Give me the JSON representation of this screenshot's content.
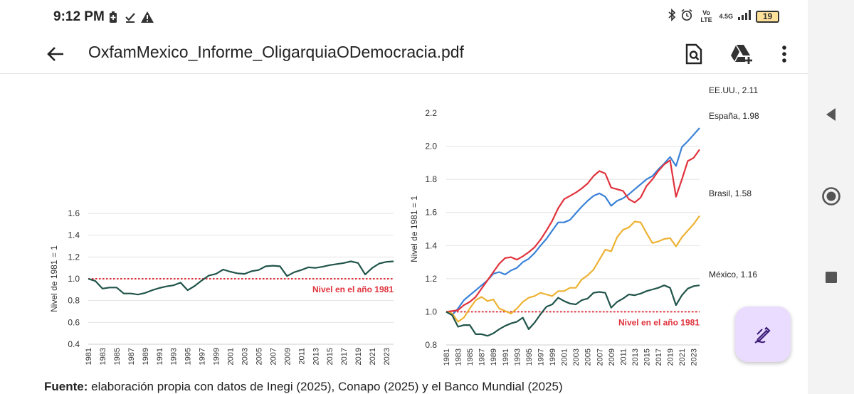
{
  "status_bar": {
    "time": "9:12 PM",
    "left_icons": [
      "battery-saver-icon",
      "download-done-icon",
      "warning-icon"
    ],
    "network_label": "Vo LTE",
    "network_speed": "4.5G",
    "battery_level": "19"
  },
  "app_bar": {
    "title": "OxfamMexico_Informe_OligarquiaODemocracia.pdf",
    "actions": [
      "search-document-icon",
      "drive-add-icon",
      "more-vert-icon"
    ]
  },
  "source": {
    "bold": "Fuente:",
    "text": " elaboración propia con datos de Inegi (2025), Conapo (2025) y el Banco Mundial (2025)"
  },
  "chart_data": [
    {
      "type": "line",
      "ylabel": "Nivel de 1981 = 1",
      "ylim": [
        0.4,
        1.6
      ],
      "yticks": [
        "1.6",
        "1.4",
        "1.2",
        "1.0",
        "0.8",
        "0.6",
        "0.4"
      ],
      "xticks": [
        "1981",
        "1983",
        "1985",
        "1987",
        "1989",
        "1991",
        "1993",
        "1995",
        "1997",
        "1999",
        "2001",
        "2003",
        "2005",
        "2007",
        "2009",
        "2011",
        "2013",
        "2015",
        "2017",
        "2019",
        "2021",
        "2023"
      ],
      "reference": {
        "value": 1.0,
        "label": "Nivel en el año 1981",
        "color": "#e0333c"
      },
      "grid": true,
      "series": [
        {
          "color": "#20544a",
          "x": [
            1981,
            1982,
            1983,
            1984,
            1985,
            1986,
            1987,
            1988,
            1989,
            1990,
            1991,
            1992,
            1993,
            1994,
            1995,
            1996,
            1997,
            1998,
            1999,
            2000,
            2001,
            2002,
            2003,
            2004,
            2005,
            2006,
            2007,
            2008,
            2009,
            2010,
            2011,
            2012,
            2013,
            2014,
            2015,
            2016,
            2017,
            2018,
            2019,
            2020,
            2021,
            2022,
            2023,
            2024
          ],
          "values": [
            1.0,
            0.98,
            0.91,
            0.92,
            0.92,
            0.865,
            0.865,
            0.855,
            0.87,
            0.895,
            0.915,
            0.93,
            0.94,
            0.965,
            0.895,
            0.935,
            0.985,
            1.03,
            1.045,
            1.085,
            1.065,
            1.05,
            1.045,
            1.07,
            1.08,
            1.115,
            1.12,
            1.115,
            1.025,
            1.06,
            1.08,
            1.105,
            1.1,
            1.11,
            1.125,
            1.135,
            1.145,
            1.16,
            1.145,
            1.04,
            1.1,
            1.14,
            1.155,
            1.16
          ]
        }
      ]
    },
    {
      "type": "line",
      "ylabel": "Nivel de 1981 = 1",
      "ylim": [
        0.8,
        2.2
      ],
      "yticks": [
        "2.0",
        "1.8",
        "1.6",
        "1.4",
        "1.2",
        "1.0",
        "0.8"
      ],
      "partial_top_tick": "2.2",
      "xticks": [
        "1981",
        "1983",
        "1985",
        "1987",
        "1989",
        "1991",
        "1993",
        "1995",
        "1997",
        "1999",
        "2001",
        "2003",
        "2005",
        "2007",
        "2009",
        "2011",
        "2013",
        "2015",
        "2017",
        "2019",
        "2021",
        "2023"
      ],
      "reference": {
        "value": 1.0,
        "label": "Nivel en el año 1981",
        "color": "#e0333c"
      },
      "grid": true,
      "series": [
        {
          "name": "EE.UU., 2.11",
          "color": "#3a82d8",
          "x": [
            1981,
            1982,
            1983,
            1984,
            1985,
            1986,
            1987,
            1988,
            1989,
            1990,
            1991,
            1992,
            1993,
            1994,
            1995,
            1996,
            1997,
            1998,
            1999,
            2000,
            2001,
            2002,
            2003,
            2004,
            2005,
            2006,
            2007,
            2008,
            2009,
            2010,
            2011,
            2012,
            2013,
            2014,
            2015,
            2016,
            2017,
            2018,
            2019,
            2020,
            2021,
            2022,
            2023,
            2024
          ],
          "values": [
            1.0,
            0.98,
            1.02,
            1.07,
            1.1,
            1.13,
            1.16,
            1.19,
            1.23,
            1.24,
            1.225,
            1.25,
            1.265,
            1.3,
            1.32,
            1.355,
            1.4,
            1.44,
            1.49,
            1.54,
            1.54,
            1.555,
            1.595,
            1.635,
            1.67,
            1.7,
            1.715,
            1.695,
            1.64,
            1.67,
            1.685,
            1.71,
            1.74,
            1.77,
            1.8,
            1.82,
            1.86,
            1.895,
            1.935,
            1.88,
            1.995,
            2.03,
            2.07,
            2.11
          ]
        },
        {
          "name": "España, 1.98",
          "color": "#e0333c",
          "x": [
            1981,
            1982,
            1983,
            1984,
            1985,
            1986,
            1987,
            1988,
            1989,
            1990,
            1991,
            1992,
            1993,
            1994,
            1995,
            1996,
            1997,
            1998,
            1999,
            2000,
            2001,
            2002,
            2003,
            2004,
            2005,
            2006,
            2007,
            2008,
            2009,
            2010,
            2011,
            2012,
            2013,
            2014,
            2015,
            2016,
            2017,
            2018,
            2019,
            2020,
            2021,
            2022,
            2023,
            2024
          ],
          "values": [
            1.0,
            1.005,
            1.01,
            1.04,
            1.06,
            1.09,
            1.14,
            1.19,
            1.24,
            1.29,
            1.325,
            1.33,
            1.315,
            1.335,
            1.36,
            1.39,
            1.435,
            1.49,
            1.55,
            1.625,
            1.68,
            1.7,
            1.72,
            1.745,
            1.775,
            1.82,
            1.85,
            1.835,
            1.75,
            1.74,
            1.73,
            1.68,
            1.66,
            1.69,
            1.76,
            1.8,
            1.85,
            1.89,
            1.915,
            1.695,
            1.8,
            1.91,
            1.93,
            1.98
          ]
        },
        {
          "name": "Brasil, 1.58",
          "color": "#edb233",
          "x": [
            1981,
            1982,
            1983,
            1984,
            1985,
            1986,
            1987,
            1988,
            1989,
            1990,
            1991,
            1992,
            1993,
            1994,
            1995,
            1996,
            1997,
            1998,
            1999,
            2000,
            2001,
            2002,
            2003,
            2004,
            2005,
            2006,
            2007,
            2008,
            2009,
            2010,
            2011,
            2012,
            2013,
            2014,
            2015,
            2016,
            2017,
            2018,
            2019,
            2020,
            2021,
            2022,
            2023,
            2024
          ],
          "values": [
            1.0,
            0.99,
            0.94,
            0.965,
            1.02,
            1.07,
            1.09,
            1.065,
            1.075,
            1.02,
            1.005,
            0.99,
            1.02,
            1.06,
            1.085,
            1.095,
            1.115,
            1.105,
            1.095,
            1.125,
            1.125,
            1.145,
            1.145,
            1.195,
            1.22,
            1.255,
            1.315,
            1.375,
            1.365,
            1.45,
            1.495,
            1.51,
            1.545,
            1.54,
            1.475,
            1.415,
            1.425,
            1.44,
            1.445,
            1.395,
            1.45,
            1.49,
            1.53,
            1.58
          ]
        },
        {
          "name": "México, 1.16",
          "color": "#20544a",
          "x": [
            1981,
            1982,
            1983,
            1984,
            1985,
            1986,
            1987,
            1988,
            1989,
            1990,
            1991,
            1992,
            1993,
            1994,
            1995,
            1996,
            1997,
            1998,
            1999,
            2000,
            2001,
            2002,
            2003,
            2004,
            2005,
            2006,
            2007,
            2008,
            2009,
            2010,
            2011,
            2012,
            2013,
            2014,
            2015,
            2016,
            2017,
            2018,
            2019,
            2020,
            2021,
            2022,
            2023,
            2024
          ],
          "values": [
            1.0,
            0.98,
            0.91,
            0.92,
            0.92,
            0.865,
            0.865,
            0.855,
            0.87,
            0.895,
            0.915,
            0.93,
            0.94,
            0.965,
            0.895,
            0.935,
            0.985,
            1.03,
            1.045,
            1.085,
            1.065,
            1.05,
            1.045,
            1.07,
            1.08,
            1.115,
            1.12,
            1.115,
            1.025,
            1.06,
            1.08,
            1.105,
            1.1,
            1.11,
            1.125,
            1.135,
            1.145,
            1.16,
            1.145,
            1.04,
            1.1,
            1.14,
            1.155,
            1.16
          ]
        }
      ]
    }
  ]
}
